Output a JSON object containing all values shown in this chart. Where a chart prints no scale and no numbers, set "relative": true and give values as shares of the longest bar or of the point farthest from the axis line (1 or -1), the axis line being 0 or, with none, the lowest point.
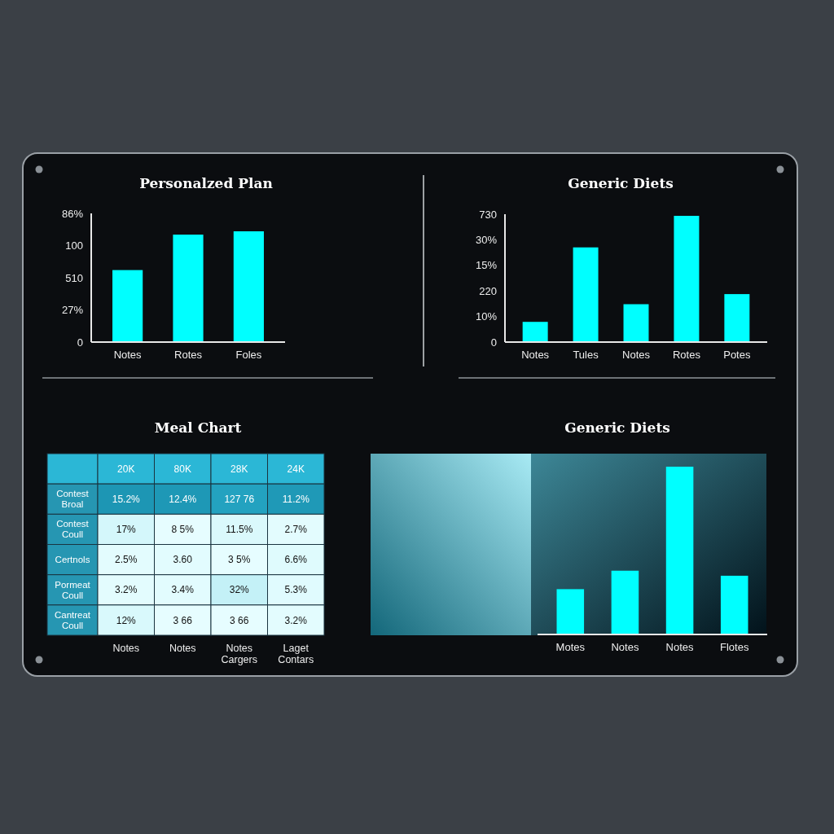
{
  "chart_data": [
    {
      "type": "bar",
      "title": "Personalzed Plan",
      "categories": [
        "Notes",
        "Rotes",
        "Foles"
      ],
      "values": [
        0.65,
        0.97,
        1
      ],
      "color": "#00ffff",
      "relative": true,
      "annotations": [
        "0",
        "27%",
        "510",
        "100",
        "86%"
      ]
    },
    {
      "type": "bar",
      "title": "Generic Diets",
      "categories": [
        "Notes",
        "Tules",
        "Notes",
        "Rotes",
        "Potes"
      ],
      "values": [
        0.16,
        0.75,
        0.3,
        1,
        0.38
      ],
      "color": "#00ffff",
      "relative": true,
      "annotations": [
        "0",
        "10%",
        "220",
        "15%",
        "30%",
        "730"
      ]
    },
    {
      "type": "heatmap",
      "title": "Meal Chart",
      "categories": [
        "20K",
        "80K",
        "28K",
        "24K"
      ],
      "y_categories": [
        "Contest Broal",
        "Contest Coull",
        "Certnols",
        "Pormeat Coull",
        "Cantreat Coull"
      ],
      "cells": [
        [
          15.2,
          12.4,
          null,
          11.2
        ],
        [
          17,
          null,
          11.5,
          2.7
        ],
        [
          2.5,
          3.6,
          null,
          6.6
        ],
        [
          3.2,
          3.4,
          32,
          5.3
        ],
        [
          12,
          null,
          null,
          3.2
        ]
      ],
      "cell_labels": [
        [
          "15.2%",
          "12.4%",
          "127 76",
          "11.2%"
        ],
        [
          "17%",
          "8 5%",
          "11.5%",
          "2.7%"
        ],
        [
          "2.5%",
          "3.60",
          "3 5%",
          "6.6%"
        ],
        [
          "3.2%",
          "3.4%",
          "32%",
          "5.3%"
        ],
        [
          "12%",
          "3 66",
          "3 66",
          "3.2%"
        ]
      ],
      "annotations": [
        "Notes",
        "Notes",
        "Notes Cargers",
        "Laget Contars"
      ]
    },
    {
      "type": "bar",
      "title": "Generic Diets",
      "categories": [
        "Motes",
        "Notes",
        "Notes",
        "Flotes"
      ],
      "values": [
        0.27,
        0.38,
        1,
        0.35
      ],
      "color": "#00ffff",
      "relative": true
    }
  ]
}
